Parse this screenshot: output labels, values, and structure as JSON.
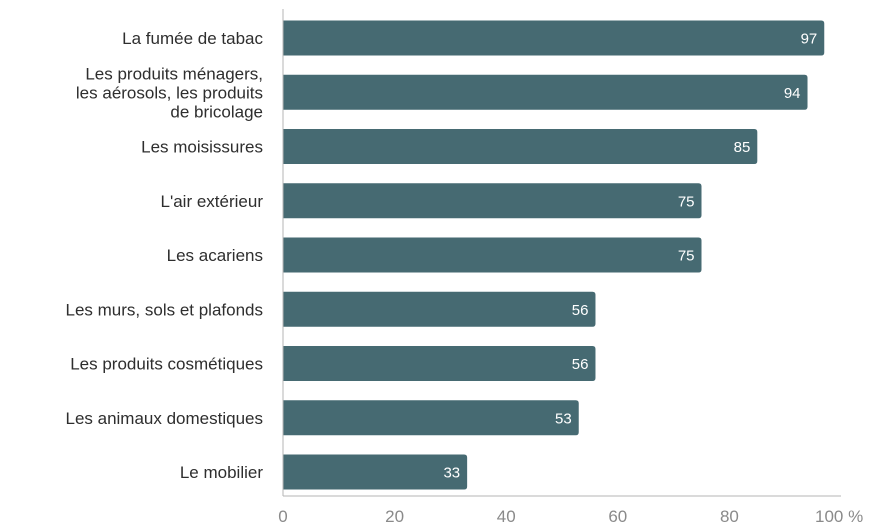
{
  "chart_data": {
    "type": "bar",
    "orientation": "horizontal",
    "categories": [
      "La fumée de tabac",
      "Les produits ménagers,\nles aérosols, les produits\nde bricolage",
      "Les moisissures",
      "L'air extérieur",
      "Les acariens",
      "Les murs, sols et plafonds",
      "Les produits cosmétiques",
      "Les animaux domestiques",
      "Le mobilier"
    ],
    "values": [
      97,
      94,
      85,
      75,
      75,
      56,
      56,
      53,
      33
    ],
    "xlim": [
      0,
      100
    ],
    "xticks": [
      "0",
      "20",
      "40",
      "60",
      "80",
      "100 %"
    ],
    "grid": false,
    "colors": {
      "bar": "#466a72",
      "value_label": "#ffffff",
      "axis": "#b5b5b5",
      "tick_label": "#8a8a8a",
      "category_label": "#2e2e2e"
    }
  }
}
